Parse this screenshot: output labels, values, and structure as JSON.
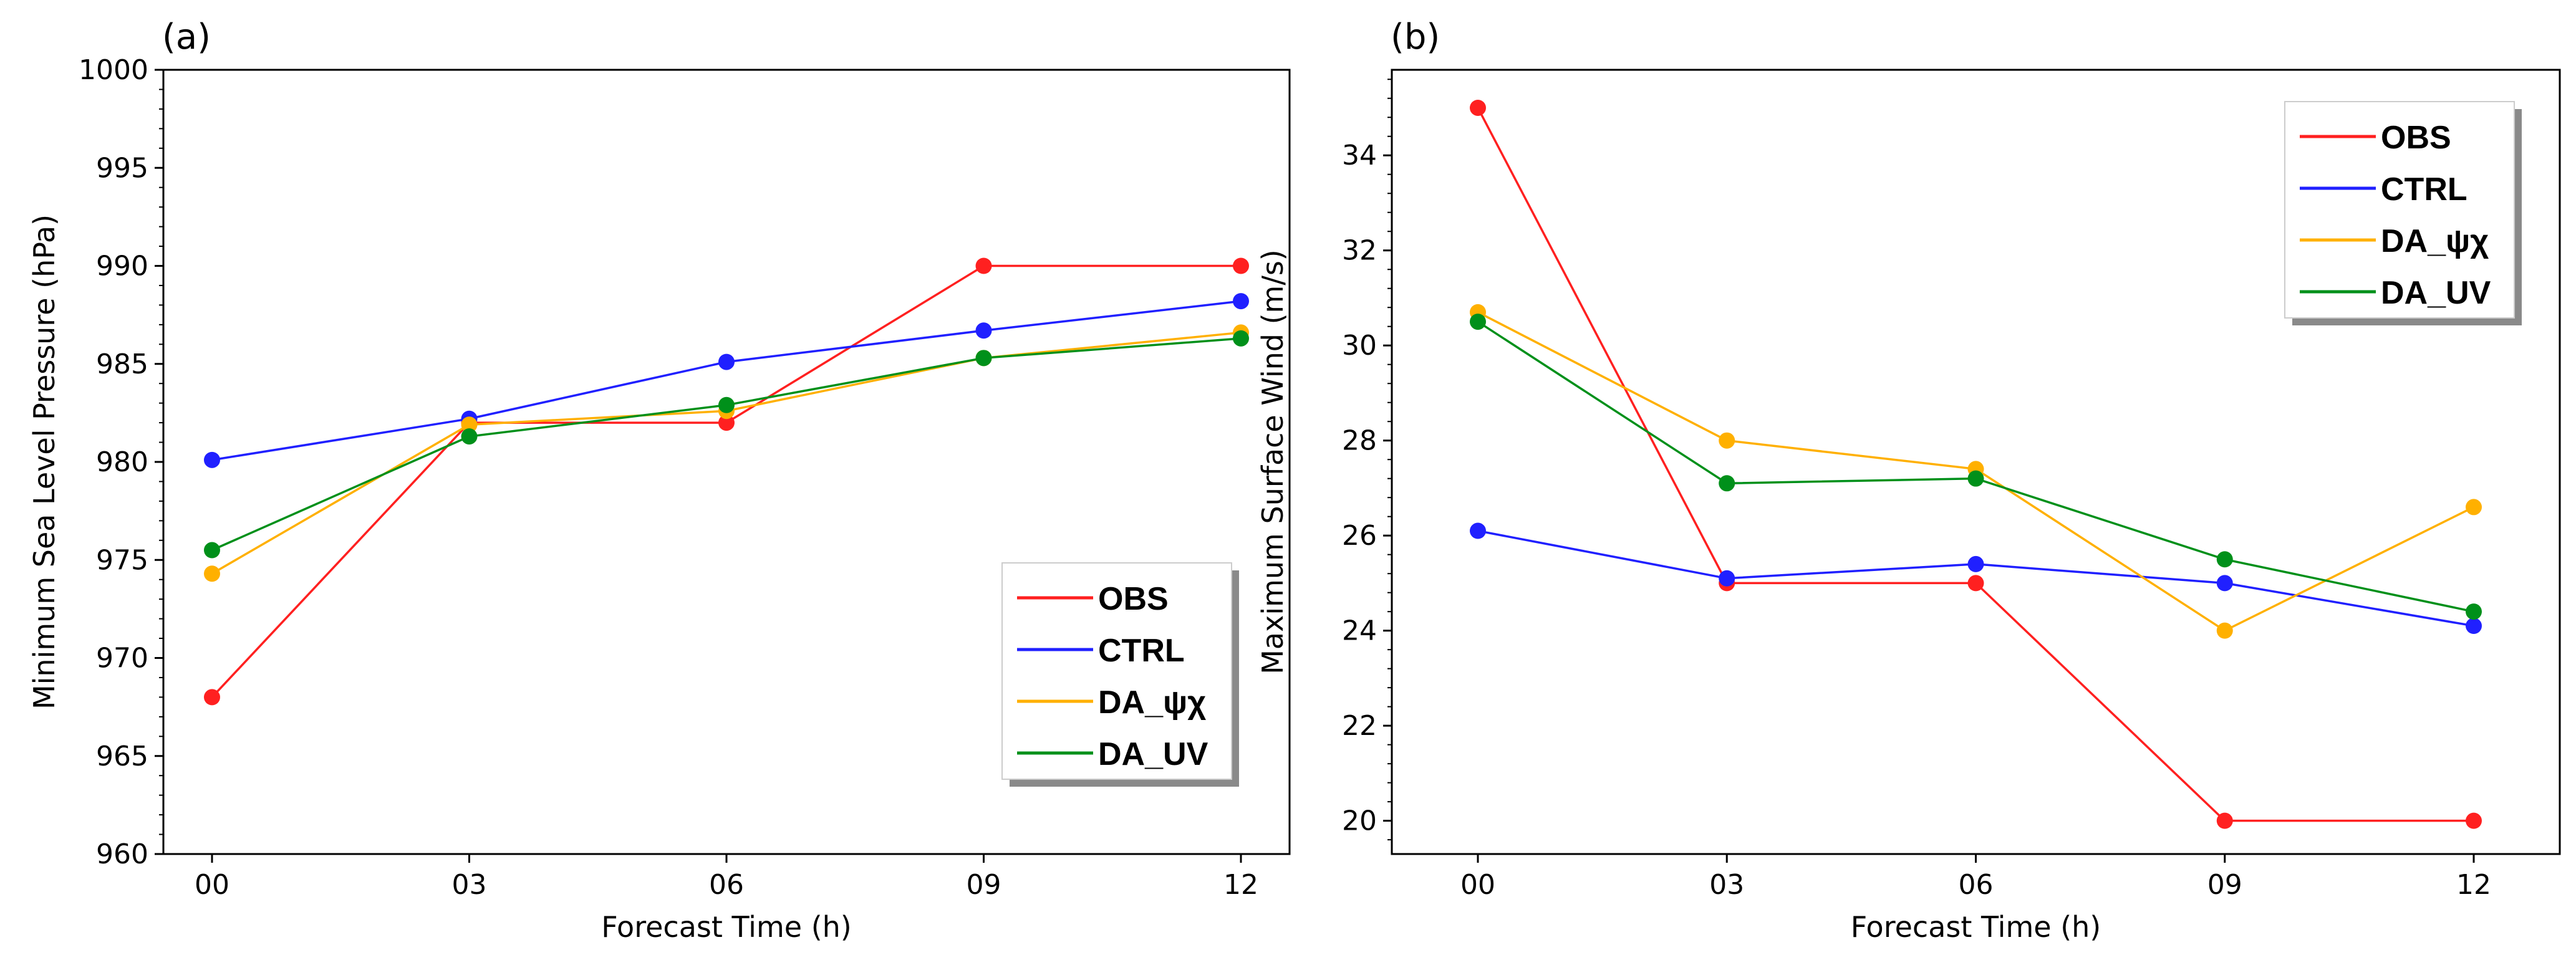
{
  "chart_data": [
    {
      "type": "line",
      "panel_label": "(a)",
      "xlabel": "Forecast Time (h)",
      "ylabel": "Minimum Sea Level Pressure (hPa)",
      "categories": [
        "00",
        "03",
        "06",
        "09",
        "12"
      ],
      "ylim": [
        960,
        1000
      ],
      "yticks": [
        960,
        965,
        970,
        975,
        980,
        985,
        990,
        995,
        1000
      ],
      "ytick_labels": [
        "960",
        "965",
        "970",
        "975",
        "980",
        "985",
        "990",
        "995",
        "1000"
      ],
      "legend_position": "lower-right",
      "series": [
        {
          "name": "OBS",
          "color": "#ff2020",
          "values": [
            968.0,
            982.0,
            982.0,
            990.0,
            990.0
          ]
        },
        {
          "name": "CTRL",
          "color": "#2020ff",
          "values": [
            980.1,
            982.2,
            985.1,
            986.7,
            988.2
          ]
        },
        {
          "name": "DA_ψχ",
          "color": "#ffb000",
          "values": [
            974.3,
            981.9,
            982.6,
            985.3,
            986.6
          ]
        },
        {
          "name": "DA_UV",
          "color": "#00901a",
          "values": [
            975.5,
            981.3,
            982.9,
            985.3,
            986.3
          ]
        }
      ]
    },
    {
      "type": "line",
      "panel_label": "(b)",
      "xlabel": "Forecast Time (h)",
      "ylabel": "Maximum Surface Wind (m/s)",
      "categories": [
        "00",
        "03",
        "06",
        "09",
        "12"
      ],
      "ylim": [
        19.3,
        35.8
      ],
      "yticks": [
        20,
        22,
        24,
        26,
        28,
        30,
        32,
        34
      ],
      "ytick_labels": [
        "20",
        "22",
        "24",
        "26",
        "28",
        "30",
        "32",
        "34"
      ],
      "legend_position": "upper-right",
      "series": [
        {
          "name": "OBS",
          "color": "#ff2020",
          "values": [
            35.0,
            25.0,
            25.0,
            20.0,
            20.0
          ]
        },
        {
          "name": "CTRL",
          "color": "#2020ff",
          "values": [
            26.1,
            25.1,
            25.4,
            25.0,
            24.1
          ]
        },
        {
          "name": "DA_ψχ",
          "color": "#ffb000",
          "values": [
            30.7,
            28.0,
            27.4,
            24.0,
            26.6
          ]
        },
        {
          "name": "DA_UV",
          "color": "#00901a",
          "values": [
            30.5,
            27.1,
            27.2,
            25.5,
            24.4
          ]
        }
      ]
    }
  ]
}
